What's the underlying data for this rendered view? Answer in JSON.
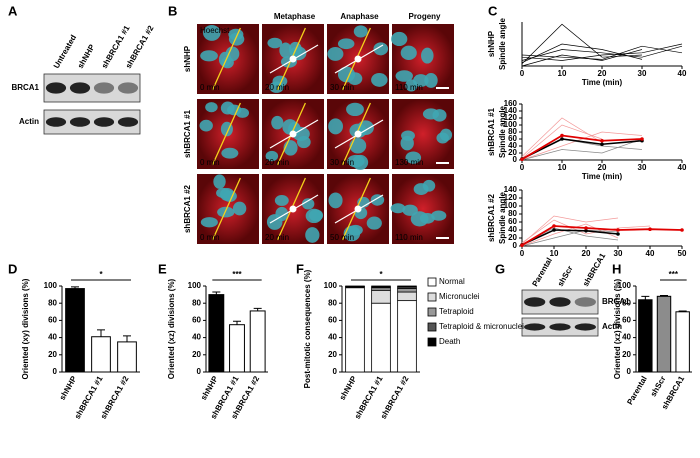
{
  "blot_a": {
    "panel": "A",
    "lanes": [
      "Untreated",
      "shNHP",
      "shBRCA1 #1",
      "shBRCA1 #2"
    ],
    "bands": [
      "BRCA1",
      "Actin"
    ]
  },
  "micro_b": {
    "panel": "B",
    "stain": "Hoechst",
    "columns": [
      "Metaphase",
      "Anaphase",
      "Progeny"
    ],
    "rows": [
      "shNHP",
      "shBRCA1 #1",
      "shBRCA1 #2"
    ],
    "times": [
      [
        "0 min",
        "20 min",
        "30 min",
        "110 min"
      ],
      [
        "0 min",
        "20 min",
        "30 min",
        "130 min"
      ],
      [
        "0 min",
        "20 min",
        "50 min",
        "110 min"
      ]
    ]
  },
  "blot_g": {
    "panel": "G",
    "lanes": [
      "Parental",
      "shScr",
      "shBRCA1"
    ],
    "bands": [
      "BRCA1",
      "Actin"
    ]
  },
  "chart_data": [
    {
      "type": "line",
      "panel": "C",
      "title": "shNHP",
      "ylabel": "Spindle angle",
      "xlabel": "Time (min)",
      "x": [
        0,
        10,
        20,
        30,
        40
      ],
      "xlim": [
        0,
        40
      ],
      "xticks": [
        0,
        10,
        20,
        30,
        40
      ],
      "ylim": [
        0,
        40
      ],
      "series": [
        {
          "color": "#000000",
          "line_width": 0.7,
          "values": [
            2,
            38,
            8,
            10,
            null
          ]
        },
        {
          "color": "#000000",
          "line_width": 0.7,
          "values": [
            5,
            15,
            12,
            8,
            18
          ]
        },
        {
          "color": "#000000",
          "line_width": 0.7,
          "values": [
            0,
            10,
            5,
            15,
            null
          ]
        },
        {
          "color": "#000000",
          "line_width": 0.7,
          "values": [
            8,
            5,
            10,
            12,
            20
          ]
        },
        {
          "color": "#000000",
          "line_width": 0.7,
          "values": [
            3,
            20,
            15,
            6,
            null
          ]
        },
        {
          "color": "#000000",
          "line_width": 0.7,
          "values": [
            10,
            8,
            6,
            18,
            12
          ]
        }
      ]
    },
    {
      "type": "line",
      "title": "shBRCA1 #1",
      "ylabel": "Spindle angle",
      "xlabel": "Time (min)",
      "x": [
        0,
        10,
        20,
        30,
        40
      ],
      "xlim": [
        0,
        40
      ],
      "xticks": [
        0,
        10,
        20,
        30,
        40
      ],
      "ylim": [
        0,
        160
      ],
      "yticks": [
        0,
        20,
        40,
        60,
        80,
        100,
        120,
        140,
        160
      ],
      "series": [
        {
          "color": "#f39a9a",
          "line_width": 0.7,
          "values": [
            5,
            100,
            60,
            null,
            null
          ]
        },
        {
          "color": "#f39a9a",
          "line_width": 0.7,
          "values": [
            0,
            40,
            80,
            70,
            null
          ]
        },
        {
          "color": "#f39a9a",
          "line_width": 0.7,
          "values": [
            10,
            120,
            50,
            null,
            null
          ]
        },
        {
          "color": "#888888",
          "line_width": 0.7,
          "values": [
            0,
            30,
            20,
            60,
            null
          ]
        },
        {
          "color": "#888888",
          "line_width": 0.7,
          "values": [
            5,
            60,
            40,
            30,
            null
          ]
        },
        {
          "color": "#000000",
          "line_width": 1.6,
          "values": [
            3,
            60,
            45,
            55,
            null
          ]
        },
        {
          "color": "#e00000",
          "line_width": 1.8,
          "values": [
            2,
            70,
            55,
            60,
            null
          ]
        }
      ]
    },
    {
      "type": "line",
      "title": "shBRCA1 #2",
      "ylabel": "Spindle angle",
      "x": [
        0,
        10,
        20,
        30,
        40,
        50
      ],
      "xlim": [
        0,
        50
      ],
      "xticks": [
        0,
        10,
        20,
        30,
        40,
        50
      ],
      "ylim": [
        0,
        140
      ],
      "yticks": [
        0,
        20,
        40,
        60,
        80,
        100,
        120,
        140
      ],
      "series": [
        {
          "color": "#f39a9a",
          "line_width": 0.7,
          "values": [
            5,
            75,
            60,
            70,
            null,
            null
          ]
        },
        {
          "color": "#f39a9a",
          "line_width": 0.7,
          "values": [
            0,
            30,
            55,
            20,
            null,
            null
          ]
        },
        {
          "color": "#f39a9a",
          "line_width": 0.7,
          "values": [
            8,
            65,
            30,
            45,
            50,
            null
          ]
        },
        {
          "color": "#888888",
          "line_width": 0.7,
          "values": [
            0,
            20,
            40,
            35,
            null,
            null
          ]
        },
        {
          "color": "#888888",
          "line_width": 0.7,
          "values": [
            4,
            45,
            25,
            15,
            null,
            null
          ]
        },
        {
          "color": "#000000",
          "line_width": 1.6,
          "values": [
            3,
            40,
            38,
            30,
            null,
            null
          ]
        },
        {
          "color": "#e00000",
          "line_width": 1.8,
          "values": [
            2,
            50,
            45,
            40,
            42,
            40
          ]
        }
      ]
    },
    {
      "type": "bar",
      "panel": "D",
      "ylabel": "Oriented (xy) divisions (%)",
      "significance": "*",
      "categories": [
        "shNHP",
        "shBRCA1 #1",
        "shBRCA1 #2"
      ],
      "values": [
        97,
        41,
        35
      ],
      "errors": [
        2,
        8,
        7
      ],
      "colors": [
        "#000000",
        "#ffffff",
        "#ffffff"
      ],
      "ylim": [
        0,
        100
      ],
      "yticks": [
        0,
        20,
        40,
        60,
        80,
        100
      ]
    },
    {
      "type": "bar",
      "panel": "E",
      "ylabel": "Oriented (xz) divisions (%)",
      "significance": "***",
      "categories": [
        "shNHP",
        "shBRCA1 #1",
        "shBRCA1 #2"
      ],
      "values": [
        90,
        55,
        71
      ],
      "errors": [
        3,
        4,
        3
      ],
      "colors": [
        "#000000",
        "#ffffff",
        "#ffffff"
      ],
      "ylim": [
        0,
        100
      ],
      "yticks": [
        0,
        20,
        40,
        60,
        80,
        100
      ]
    },
    {
      "type": "stacked_bar",
      "panel": "F",
      "ylabel": "Post-mitotic consequences (%)",
      "significance": "*",
      "categories": [
        "shNHP",
        "shBRCA1 #1",
        "shBRCA1 #2"
      ],
      "ylim": [
        0,
        100
      ],
      "yticks": [
        0,
        20,
        40,
        60,
        80,
        100
      ],
      "series": [
        {
          "name": "Normal",
          "color": "#ffffff",
          "values": [
            98,
            80,
            83
          ]
        },
        {
          "name": "Micronuclei",
          "color": "#dddddd",
          "values": [
            1,
            15,
            10
          ]
        },
        {
          "name": "Tetraploid",
          "color": "#999999",
          "values": [
            0.5,
            3,
            4
          ]
        },
        {
          "name": "Tetraploid & micronuclei",
          "color": "#555555",
          "values": [
            0,
            1,
            2
          ]
        },
        {
          "name": "Death",
          "color": "#000000",
          "values": [
            0.5,
            1,
            1
          ]
        }
      ]
    },
    {
      "type": "bar",
      "panel": "H",
      "ylabel": "Oriented (xz) divisions (%)",
      "significance": "***",
      "categories": [
        "Parental",
        "shScr",
        "shBRCA1"
      ],
      "values": [
        84,
        88,
        70
      ],
      "errors": [
        4,
        1,
        1
      ],
      "colors": [
        "#000000",
        "#8c8c8c",
        "#ffffff"
      ],
      "ylim": [
        0,
        100
      ],
      "yticks": [
        0,
        20,
        40,
        60,
        80,
        100
      ]
    }
  ]
}
